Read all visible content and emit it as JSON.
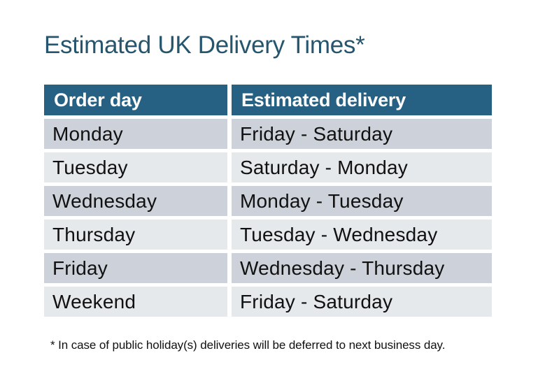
{
  "title": "Estimated UK Delivery Times*",
  "colors": {
    "background": "#FFFFFF",
    "title_text": "#26556E",
    "header_bg": "#266184",
    "header_text": "#FFFFFF",
    "row_dark_bg": "#CDD1D9",
    "row_light_bg": "#E6E9EC",
    "row_text": "#111111"
  },
  "table": {
    "columns": {
      "order_day": "Order day",
      "estimated_delivery": "Estimated delivery"
    },
    "rows": [
      {
        "order_day": "Monday",
        "estimated_delivery": "Friday - Saturday"
      },
      {
        "order_day": "Tuesday",
        "estimated_delivery": "Saturday - Monday"
      },
      {
        "order_day": "Wednesday",
        "estimated_delivery": "Monday - Tuesday"
      },
      {
        "order_day": "Thursday",
        "estimated_delivery": "Tuesday - Wednesday"
      },
      {
        "order_day": "Friday",
        "estimated_delivery": "Wednesday - Thursday"
      },
      {
        "order_day": "Weekend",
        "estimated_delivery": "Friday - Saturday"
      }
    ]
  },
  "footnote": "* In case of public holiday(s) deliveries will be deferred to next business day."
}
